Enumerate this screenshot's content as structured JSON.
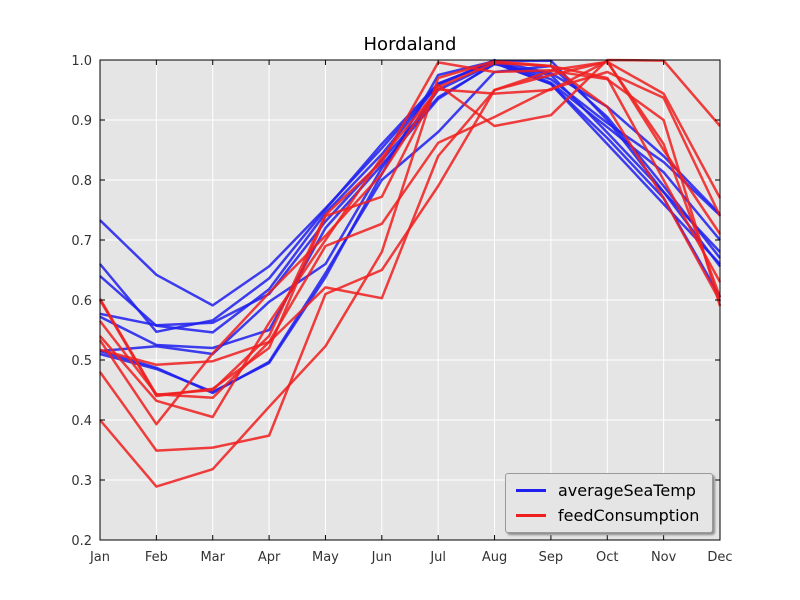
{
  "chart_data": {
    "type": "line",
    "title": "Hordaland",
    "xlabel": "",
    "ylabel": "",
    "categories": [
      "Jan",
      "Feb",
      "Mar",
      "Apr",
      "May",
      "Jun",
      "Jul",
      "Aug",
      "Sep",
      "Oct",
      "Nov",
      "Dec"
    ],
    "ylim": [
      0.2,
      1.0
    ],
    "yticks": [
      "0.2",
      "0.3",
      "0.4",
      "0.5",
      "0.6",
      "0.7",
      "0.8",
      "0.9",
      "1.0"
    ],
    "grid": true,
    "legend_position": "bottom-right",
    "colors": {
      "averageSeaTemp": "#1f1ff0",
      "feedConsumption": "#f01f1f",
      "plot_bg": "#e5e5e5",
      "grid": "#ffffff"
    },
    "legend": [
      {
        "name": "averageSeaTemp",
        "color": "#1f1ff0"
      },
      {
        "name": "feedConsumption",
        "color": "#f01f1f"
      }
    ],
    "series": [
      {
        "group": "averageSeaTemp",
        "values": [
          0.733,
          0.642,
          0.591,
          0.656,
          0.753,
          0.853,
          0.96,
          0.998,
          0.978,
          0.922,
          0.84,
          0.743
        ]
      },
      {
        "group": "averageSeaTemp",
        "values": [
          0.66,
          0.547,
          0.566,
          0.636,
          0.751,
          0.86,
          0.961,
          0.997,
          0.968,
          0.895,
          0.83,
          0.741
        ]
      },
      {
        "group": "averageSeaTemp",
        "values": [
          0.64,
          0.557,
          0.546,
          0.618,
          0.745,
          0.843,
          0.959,
          1.0,
          0.962,
          0.888,
          0.813,
          0.7
        ]
      },
      {
        "group": "averageSeaTemp",
        "values": [
          0.577,
          0.558,
          0.562,
          0.61,
          0.731,
          0.833,
          0.938,
          0.993,
          0.975,
          0.879,
          0.78,
          0.68
        ]
      },
      {
        "group": "averageSeaTemp",
        "values": [
          0.572,
          0.525,
          0.52,
          0.55,
          0.72,
          0.825,
          0.935,
          0.995,
          0.96,
          0.86,
          0.76,
          0.66
        ]
      },
      {
        "group": "averageSeaTemp",
        "values": [
          0.515,
          0.523,
          0.51,
          0.597,
          0.66,
          0.82,
          0.95,
          0.995,
          0.96,
          0.87,
          0.77,
          0.605
        ]
      },
      {
        "group": "averageSeaTemp",
        "values": [
          0.515,
          0.487,
          0.445,
          0.497,
          0.645,
          0.8,
          0.88,
          0.98,
          0.99,
          0.905,
          0.79,
          0.67
        ]
      },
      {
        "group": "averageSeaTemp",
        "values": [
          0.51,
          0.485,
          0.447,
          0.495,
          0.638,
          0.81,
          0.975,
          0.998,
          0.999,
          0.9,
          0.78,
          0.656
        ]
      },
      {
        "group": "feedConsumption",
        "values": [
          0.6,
          0.44,
          0.452,
          0.52,
          0.74,
          0.772,
          0.958,
          0.89,
          0.908,
          1.0,
          0.999,
          0.89
        ]
      },
      {
        "group": "feedConsumption",
        "values": [
          0.602,
          0.442,
          0.45,
          0.54,
          0.742,
          0.83,
          0.996,
          0.98,
          0.983,
          0.997,
          0.944,
          0.77
        ]
      },
      {
        "group": "feedConsumption",
        "values": [
          0.565,
          0.443,
          0.437,
          0.53,
          0.69,
          0.727,
          0.862,
          0.905,
          0.952,
          0.98,
          0.937,
          0.74
        ]
      },
      {
        "group": "feedConsumption",
        "values": [
          0.54,
          0.432,
          0.405,
          0.562,
          0.7,
          0.838,
          0.951,
          0.944,
          0.95,
          0.998,
          0.85,
          0.71
        ]
      },
      {
        "group": "feedConsumption",
        "values": [
          0.533,
          0.393,
          0.511,
          0.612,
          0.707,
          0.81,
          0.955,
          0.995,
          0.99,
          0.97,
          0.8,
          0.63
        ]
      },
      {
        "group": "feedConsumption",
        "values": [
          0.517,
          0.492,
          0.498,
          0.53,
          0.621,
          0.603,
          0.84,
          0.95,
          0.975,
          0.997,
          0.86,
          0.605
        ]
      },
      {
        "group": "feedConsumption",
        "values": [
          0.48,
          0.349,
          0.354,
          0.374,
          0.61,
          0.65,
          0.79,
          0.95,
          0.982,
          0.968,
          0.9,
          0.59
        ]
      },
      {
        "group": "feedConsumption",
        "values": [
          0.4,
          0.289,
          0.318,
          0.422,
          0.523,
          0.68,
          0.97,
          0.998,
          0.99,
          0.922,
          0.77,
          0.598
        ]
      }
    ]
  }
}
